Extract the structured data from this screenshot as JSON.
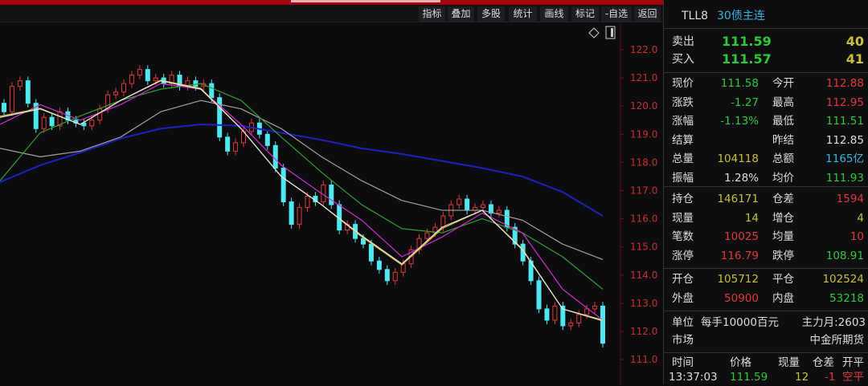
{
  "toolbar": {
    "buttons": [
      "指标",
      "叠加",
      "多股",
      "统计",
      "画线",
      "标记",
      "-自选",
      "返回"
    ]
  },
  "chart_icons": {
    "diamond": "diamond-icon",
    "panel": "panel-toggle-icon"
  },
  "chart_data": {
    "type": "candlestick",
    "ylim": [
      110,
      122.6
    ],
    "y_ticks": [
      "122.0",
      "121.0",
      "120.0",
      "119.0",
      "118.0",
      "117.0",
      "116.0",
      "115.0",
      "114.0",
      "113.0",
      "112.0",
      "111.0"
    ],
    "closes": [
      119.8,
      120.7,
      120.9,
      120.1,
      119.2,
      119.6,
      119.3,
      119.8,
      119.5,
      119.4,
      119.3,
      119.5,
      119.9,
      120.4,
      120.5,
      120.8,
      121.1,
      121.3,
      120.9,
      121.0,
      120.8,
      121.1,
      120.7,
      120.9,
      120.7,
      120.8,
      120.3,
      118.9,
      118.4,
      118.7,
      119.1,
      119.4,
      119.0,
      118.6,
      117.8,
      116.6,
      115.8,
      116.4,
      116.8,
      116.6,
      117.2,
      116.5,
      115.6,
      115.8,
      115.3,
      115.1,
      114.5,
      114.2,
      113.8,
      114.1,
      114.4,
      114.9,
      115.3,
      115.5,
      115.7,
      116.1,
      116.5,
      116.7,
      116.3,
      116.4,
      116.5,
      116.2,
      116.3,
      115.7,
      115.1,
      114.5,
      113.8,
      112.8,
      112.4,
      112.9,
      112.2,
      112.3,
      112.6,
      112.8,
      112.9,
      111.58
    ],
    "ma_lines": [
      {
        "color": "#e8e8e8",
        "values": [
          119.6,
          119.9,
          119.35,
          120.2,
          120.9,
          120.6,
          119.2,
          117.5,
          116.5,
          115.4,
          114.4,
          115.7,
          116.3,
          114.9,
          112.8,
          112.4
        ]
      },
      {
        "color": "#d8c030",
        "values": [
          119.64,
          119.92,
          119.35,
          120.2,
          120.92,
          120.63,
          119.2,
          117.5,
          116.5,
          115.36,
          114.36,
          115.65,
          116.3,
          114.93,
          112.8,
          112.37
        ]
      },
      {
        "color": "#d030d0",
        "values": [
          119.35,
          120.05,
          119.5,
          120.05,
          120.8,
          120.6,
          119.35,
          117.9,
          116.9,
          115.95,
          114.65,
          115.35,
          116.2,
          115.5,
          113.5,
          112.4
        ]
      },
      {
        "color": "#30a030",
        "values": [
          117.35,
          119.05,
          119.65,
          120.2,
          120.6,
          120.8,
          120.2,
          118.9,
          117.65,
          116.5,
          115.65,
          115.5,
          116.0,
          115.5,
          114.65,
          113.5
        ]
      },
      {
        "color": "#a0a0a0",
        "values": [
          118.5,
          118.2,
          118.4,
          118.9,
          119.8,
          120.2,
          119.9,
          119.2,
          118.2,
          117.35,
          116.65,
          116.3,
          116.3,
          115.95,
          115.1,
          114.55
        ]
      },
      {
        "color": "#2020c0",
        "values": [
          117.3,
          117.9,
          118.35,
          118.85,
          119.2,
          119.35,
          119.3,
          119.05,
          118.8,
          118.5,
          118.3,
          118.05,
          117.8,
          117.5,
          116.95,
          116.1
        ]
      }
    ],
    "up_color": "#e03a3a",
    "down_color": "#50e8f0"
  },
  "panel": {
    "code": "TLL8",
    "name": "30债主连",
    "ask": {
      "label": "卖出",
      "price": "111.59",
      "vol": "40"
    },
    "bid": {
      "label": "买入",
      "price": "111.57",
      "vol": "41"
    },
    "quote": [
      [
        [
          "现价",
          "111.58",
          "g"
        ],
        [
          "今开",
          "112.88",
          "r"
        ]
      ],
      [
        [
          "涨跌",
          "-1.27",
          "g"
        ],
        [
          "最高",
          "112.95",
          "r"
        ]
      ],
      [
        [
          "涨幅",
          "-1.13%",
          "g"
        ],
        [
          "最低",
          "111.51",
          "g"
        ]
      ],
      [
        [
          "结算",
          "",
          "w"
        ],
        [
          "昨结",
          "112.85",
          "w"
        ]
      ],
      [
        [
          "总量",
          "104118",
          "y"
        ],
        [
          "总额",
          "1165亿",
          "c"
        ]
      ],
      [
        [
          "振幅",
          "1.28%",
          "w"
        ],
        [
          "均价",
          "111.93",
          "g"
        ]
      ]
    ],
    "position": [
      [
        [
          "持仓",
          "146171",
          "y"
        ],
        [
          "仓差",
          "1594",
          "r"
        ]
      ],
      [
        [
          "现量",
          "14",
          "y"
        ],
        [
          "增仓",
          "4",
          "y"
        ]
      ],
      [
        [
          "笔数",
          "10025",
          "r"
        ],
        [
          "均量",
          "10",
          "r"
        ]
      ],
      [
        [
          "涨停",
          "116.79",
          "r"
        ],
        [
          "跌停",
          "108.91",
          "g"
        ]
      ]
    ],
    "flow": [
      [
        [
          "开仓",
          "105712",
          "y"
        ],
        [
          "平仓",
          "102524",
          "y"
        ]
      ],
      [
        [
          "外盘",
          "50900",
          "r"
        ],
        [
          "内盘",
          "53218",
          "g"
        ]
      ]
    ],
    "unit_label": "单位",
    "unit_value": "每手10000百元",
    "main_month": "主力月:2603",
    "market_label": "市场",
    "market_value": "中金所期货",
    "ticks_header": [
      "时间",
      "价格",
      "现量",
      "仓差",
      "开平"
    ],
    "ticks": [
      [
        "13:37:03",
        "111.59",
        "12",
        "-1",
        "空平"
      ]
    ]
  }
}
